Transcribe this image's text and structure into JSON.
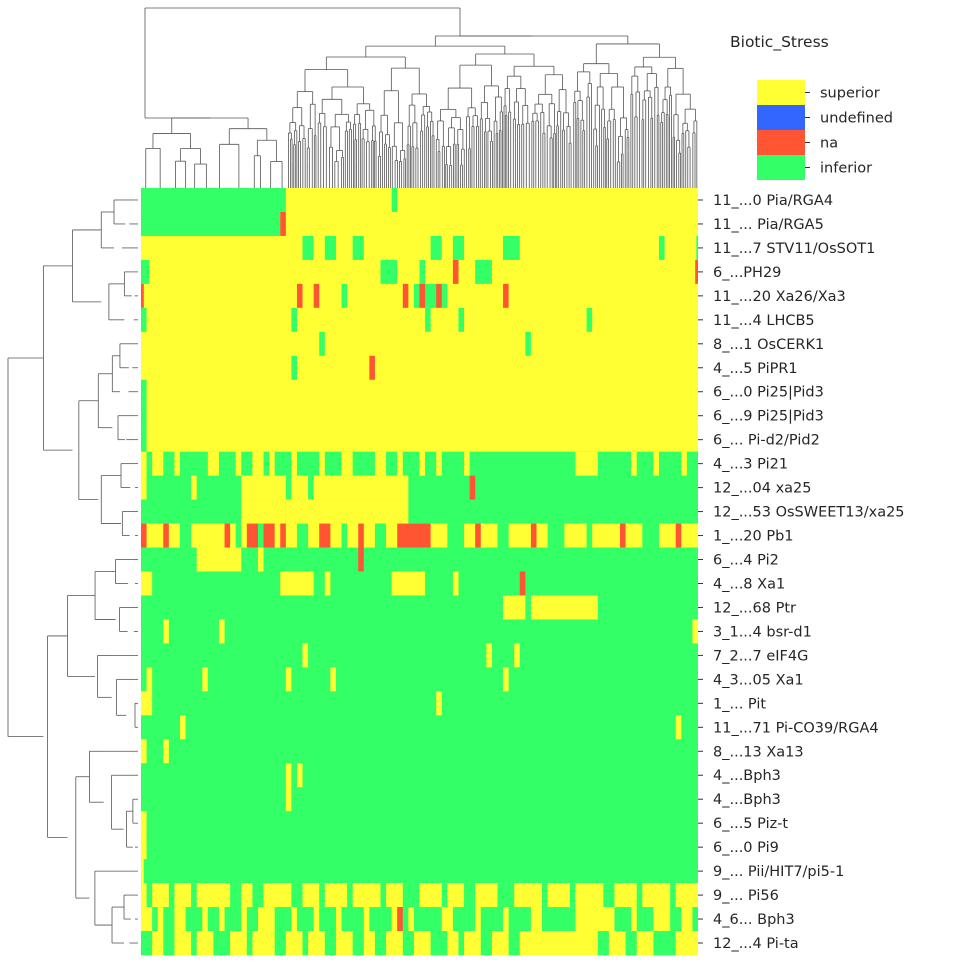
{
  "chart_data": {
    "type": "heatmap",
    "title": "",
    "legend": {
      "title": "Biotic_Stress",
      "placement": "top-right",
      "entries": [
        {
          "label": "superior",
          "color": "#ffff33"
        },
        {
          "label": "undefined",
          "color": "#3366ff"
        },
        {
          "label": "na",
          "color": "#ff5533"
        },
        {
          "label": "inferior",
          "color": "#33ff66"
        }
      ]
    },
    "row_labels": [
      "11_...0 Pia/RGA4",
      "11_... Pia/RGA5",
      "11_...7 STV11/OsSOT1",
      "6_...PH29",
      "11_...20 Xa26/Xa3",
      "11_...4 LHCB5",
      "8_...1 OsCERK1",
      "4_...5 PiPR1",
      "6_...0 Pi25|Pid3",
      "6_...9 Pi25|Pid3",
      "6_... Pi-d2/Pid2",
      "4_...3 Pi21",
      "12_...04 xa25",
      "12_...53 OsSWEET13/xa25",
      "1_...20 Pb1",
      "6_...4 Pi2",
      "4_...8 Xa1",
      "12_...68 Ptr",
      "3_1...4 bsr-d1",
      "7_2...7 eIF4G",
      "4_3...05 Xa1",
      "1_... Pit",
      "11_...71 Pi-CO39/RGA4",
      "8_...13 Xa13",
      "4_...Bph3",
      "4_...Bph3",
      "6_...5 Piz-t",
      "6_...0 Pi9",
      "9_... Pii/HIT7/pi5-1",
      "9_... Pi56",
      "4_6... Bph3",
      "12_...4 Pi-ta"
    ],
    "row_profiles": [
      {
        "base": "Y",
        "segments": [
          [
            0.0,
            0.035,
            "G"
          ],
          [
            0.035,
            0.26,
            "G"
          ],
          [
            0.45,
            0.46,
            "G"
          ]
        ]
      },
      {
        "base": "Y",
        "segments": [
          [
            0.0,
            0.035,
            "G"
          ],
          [
            0.035,
            0.25,
            "G"
          ],
          [
            0.25,
            0.26,
            "R"
          ]
        ]
      },
      {
        "base": "Y",
        "segments": [
          [
            0.29,
            0.31,
            "G"
          ],
          [
            0.33,
            0.35,
            "G"
          ],
          [
            0.38,
            0.4,
            "G"
          ],
          [
            0.52,
            0.54,
            "G"
          ],
          [
            0.56,
            0.58,
            "G"
          ],
          [
            0.65,
            0.68,
            "G"
          ],
          [
            0.93,
            0.94,
            "G"
          ],
          [
            0.997,
            1.0,
            "G"
          ]
        ]
      },
      {
        "base": "Y",
        "segments": [
          [
            0.0,
            0.015,
            "G"
          ],
          [
            0.43,
            0.46,
            "G"
          ],
          [
            0.5,
            0.51,
            "G"
          ],
          [
            0.56,
            0.57,
            "R"
          ],
          [
            0.6,
            0.63,
            "G"
          ],
          [
            0.995,
            1.0,
            "R"
          ]
        ]
      },
      {
        "base": "Y",
        "segments": [
          [
            0.0,
            0.005,
            "R"
          ],
          [
            0.28,
            0.29,
            "R"
          ],
          [
            0.31,
            0.32,
            "R"
          ],
          [
            0.36,
            0.37,
            "G"
          ],
          [
            0.47,
            0.48,
            "R"
          ],
          [
            0.49,
            0.55,
            "G"
          ],
          [
            0.5,
            0.51,
            "R"
          ],
          [
            0.53,
            0.54,
            "R"
          ],
          [
            0.65,
            0.66,
            "R"
          ]
        ]
      },
      {
        "base": "Y",
        "segments": [
          [
            0.0,
            0.01,
            "G"
          ],
          [
            0.27,
            0.28,
            "G"
          ],
          [
            0.51,
            0.52,
            "G"
          ],
          [
            0.57,
            0.58,
            "G"
          ],
          [
            0.8,
            0.81,
            "G"
          ]
        ]
      },
      {
        "base": "Y",
        "segments": [
          [
            0.32,
            0.33,
            "G"
          ],
          [
            0.69,
            0.7,
            "G"
          ]
        ]
      },
      {
        "base": "Y",
        "segments": [
          [
            0.27,
            0.28,
            "G"
          ],
          [
            0.41,
            0.42,
            "R"
          ]
        ]
      },
      {
        "base": "Y",
        "segments": [
          [
            0.0,
            0.01,
            "G"
          ]
        ]
      },
      {
        "base": "Y",
        "segments": [
          [
            0.0,
            0.01,
            "G"
          ]
        ]
      },
      {
        "base": "Y",
        "segments": [
          [
            0.0,
            0.01,
            "G"
          ]
        ]
      },
      {
        "base": "G",
        "segments": [
          [
            0.0,
            0.01,
            "Y"
          ],
          [
            0.02,
            0.04,
            "Y"
          ],
          [
            0.06,
            0.07,
            "Y"
          ],
          [
            0.12,
            0.14,
            "Y"
          ],
          [
            0.17,
            0.18,
            "Y"
          ],
          [
            0.2,
            0.22,
            "Y"
          ],
          [
            0.23,
            0.24,
            "Y"
          ],
          [
            0.27,
            0.28,
            "Y"
          ],
          [
            0.32,
            0.33,
            "Y"
          ],
          [
            0.36,
            0.38,
            "Y"
          ],
          [
            0.42,
            0.44,
            "Y"
          ],
          [
            0.46,
            0.47,
            "Y"
          ],
          [
            0.5,
            0.51,
            "Y"
          ],
          [
            0.53,
            0.54,
            "Y"
          ],
          [
            0.58,
            0.59,
            "Y"
          ],
          [
            0.78,
            0.82,
            "Y"
          ],
          [
            0.88,
            0.89,
            "Y"
          ],
          [
            0.92,
            0.93,
            "Y"
          ],
          [
            0.97,
            0.98,
            "Y"
          ]
        ]
      },
      {
        "base": "G",
        "segments": [
          [
            0.0,
            0.01,
            "Y"
          ],
          [
            0.09,
            0.1,
            "Y"
          ],
          [
            0.18,
            0.48,
            "Y"
          ],
          [
            0.26,
            0.27,
            "G"
          ],
          [
            0.3,
            0.31,
            "G"
          ],
          [
            0.59,
            0.6,
            "R"
          ]
        ]
      },
      {
        "base": "G",
        "segments": [
          [
            0.18,
            0.26,
            "Y"
          ],
          [
            0.26,
            0.48,
            "Y"
          ]
        ]
      },
      {
        "base": "Y",
        "segments": [
          [
            0.0,
            0.01,
            "R"
          ],
          [
            0.04,
            0.05,
            "R"
          ],
          [
            0.07,
            0.09,
            "G"
          ],
          [
            0.15,
            0.16,
            "R"
          ],
          [
            0.17,
            0.18,
            "G"
          ],
          [
            0.19,
            0.24,
            "R"
          ],
          [
            0.21,
            0.22,
            "G"
          ],
          [
            0.25,
            0.26,
            "R"
          ],
          [
            0.28,
            0.3,
            "G"
          ],
          [
            0.32,
            0.34,
            "R"
          ],
          [
            0.36,
            0.37,
            "G"
          ],
          [
            0.39,
            0.4,
            "R"
          ],
          [
            0.42,
            0.44,
            "G"
          ],
          [
            0.46,
            0.52,
            "R"
          ],
          [
            0.55,
            0.58,
            "G"
          ],
          [
            0.6,
            0.61,
            "R"
          ],
          [
            0.64,
            0.66,
            "G"
          ],
          [
            0.7,
            0.71,
            "R"
          ],
          [
            0.73,
            0.76,
            "G"
          ],
          [
            0.8,
            0.81,
            "G"
          ],
          [
            0.86,
            0.87,
            "R"
          ],
          [
            0.9,
            0.93,
            "G"
          ],
          [
            0.96,
            0.97,
            "R"
          ]
        ]
      },
      {
        "base": "G",
        "segments": [
          [
            0.1,
            0.18,
            "Y"
          ],
          [
            0.21,
            0.22,
            "Y"
          ],
          [
            0.26,
            0.27,
            "G"
          ],
          [
            0.39,
            0.4,
            "R"
          ]
        ]
      },
      {
        "base": "G",
        "segments": [
          [
            0.0,
            0.02,
            "Y"
          ],
          [
            0.25,
            0.31,
            "Y"
          ],
          [
            0.33,
            0.34,
            "Y"
          ],
          [
            0.45,
            0.51,
            "Y"
          ],
          [
            0.56,
            0.57,
            "Y"
          ],
          [
            0.68,
            0.69,
            "R"
          ]
        ]
      },
      {
        "base": "G",
        "segments": [
          [
            0.65,
            0.69,
            "Y"
          ],
          [
            0.7,
            0.82,
            "Y"
          ]
        ]
      },
      {
        "base": "G",
        "segments": [
          [
            0.04,
            0.05,
            "Y"
          ],
          [
            0.14,
            0.15,
            "Y"
          ],
          [
            0.99,
            1.0,
            "Y"
          ]
        ]
      },
      {
        "base": "G",
        "segments": [
          [
            0.29,
            0.3,
            "Y"
          ],
          [
            0.62,
            0.63,
            "Y"
          ],
          [
            0.67,
            0.68,
            "Y"
          ]
        ]
      },
      {
        "base": "G",
        "segments": [
          [
            0.01,
            0.02,
            "Y"
          ],
          [
            0.11,
            0.12,
            "Y"
          ],
          [
            0.26,
            0.27,
            "Y"
          ],
          [
            0.34,
            0.35,
            "Y"
          ],
          [
            0.65,
            0.66,
            "Y"
          ]
        ]
      },
      {
        "base": "G",
        "segments": [
          [
            0.0,
            0.02,
            "Y"
          ],
          [
            0.53,
            0.54,
            "Y"
          ]
        ]
      },
      {
        "base": "G",
        "segments": [
          [
            0.07,
            0.08,
            "Y"
          ],
          [
            0.96,
            0.97,
            "Y"
          ]
        ]
      },
      {
        "base": "G",
        "segments": [
          [
            0.0,
            0.01,
            "Y"
          ],
          [
            0.04,
            0.05,
            "Y"
          ]
        ]
      },
      {
        "base": "G",
        "segments": [
          [
            0.26,
            0.27,
            "Y"
          ],
          [
            0.28,
            0.29,
            "Y"
          ]
        ]
      },
      {
        "base": "G",
        "segments": [
          [
            0.26,
            0.27,
            "Y"
          ]
        ]
      },
      {
        "base": "G",
        "segments": [
          [
            0.0,
            0.01,
            "Y"
          ]
        ]
      },
      {
        "base": "G",
        "segments": [
          [
            0.0,
            0.01,
            "Y"
          ]
        ]
      },
      {
        "base": "G",
        "segments": [
          [
            0.0,
            0.005,
            "Y"
          ]
        ]
      },
      {
        "base": "Y",
        "segments": [
          [
            0.01,
            0.02,
            "G"
          ],
          [
            0.05,
            0.06,
            "G"
          ],
          [
            0.09,
            0.1,
            "G"
          ],
          [
            0.16,
            0.18,
            "G"
          ],
          [
            0.2,
            0.22,
            "G"
          ],
          [
            0.27,
            0.29,
            "G"
          ],
          [
            0.32,
            0.33,
            "G"
          ],
          [
            0.37,
            0.38,
            "G"
          ],
          [
            0.43,
            0.44,
            "G"
          ],
          [
            0.47,
            0.5,
            "G"
          ],
          [
            0.54,
            0.55,
            "G"
          ],
          [
            0.58,
            0.6,
            "G"
          ],
          [
            0.64,
            0.67,
            "G"
          ],
          [
            0.72,
            0.73,
            "G"
          ],
          [
            0.77,
            0.78,
            "G"
          ],
          [
            0.83,
            0.85,
            "G"
          ],
          [
            0.89,
            0.9,
            "G"
          ],
          [
            0.95,
            0.96,
            "G"
          ]
        ]
      },
      {
        "base": "G",
        "segments": [
          [
            0.0,
            0.02,
            "Y"
          ],
          [
            0.03,
            0.04,
            "Y"
          ],
          [
            0.06,
            0.08,
            "Y"
          ],
          [
            0.11,
            0.12,
            "Y"
          ],
          [
            0.14,
            0.15,
            "Y"
          ],
          [
            0.18,
            0.19,
            "Y"
          ],
          [
            0.21,
            0.24,
            "Y"
          ],
          [
            0.27,
            0.28,
            "Y"
          ],
          [
            0.31,
            0.32,
            "Y"
          ],
          [
            0.35,
            0.36,
            "Y"
          ],
          [
            0.4,
            0.41,
            "Y"
          ],
          [
            0.45,
            0.46,
            "Y"
          ],
          [
            0.48,
            0.49,
            "Y"
          ],
          [
            0.54,
            0.56,
            "Y"
          ],
          [
            0.6,
            0.61,
            "Y"
          ],
          [
            0.65,
            0.66,
            "Y"
          ],
          [
            0.7,
            0.72,
            "Y"
          ],
          [
            0.78,
            0.85,
            "Y"
          ],
          [
            0.88,
            0.89,
            "Y"
          ],
          [
            0.92,
            0.95,
            "Y"
          ],
          [
            0.97,
            0.99,
            "Y"
          ],
          [
            0.46,
            0.47,
            "R"
          ]
        ]
      },
      {
        "base": "Y",
        "segments": [
          [
            0.0,
            0.02,
            "G"
          ],
          [
            0.04,
            0.06,
            "G"
          ],
          [
            0.09,
            0.1,
            "G"
          ],
          [
            0.13,
            0.16,
            "G"
          ],
          [
            0.19,
            0.2,
            "G"
          ],
          [
            0.24,
            0.26,
            "G"
          ],
          [
            0.29,
            0.3,
            "G"
          ],
          [
            0.33,
            0.35,
            "G"
          ],
          [
            0.38,
            0.4,
            "G"
          ],
          [
            0.42,
            0.44,
            "G"
          ],
          [
            0.47,
            0.49,
            "G"
          ],
          [
            0.52,
            0.55,
            "G"
          ],
          [
            0.57,
            0.58,
            "G"
          ],
          [
            0.61,
            0.63,
            "G"
          ],
          [
            0.66,
            0.68,
            "G"
          ],
          [
            0.82,
            0.84,
            "G"
          ],
          [
            0.87,
            0.89,
            "G"
          ],
          [
            0.92,
            0.96,
            "G"
          ]
        ]
      }
    ]
  }
}
